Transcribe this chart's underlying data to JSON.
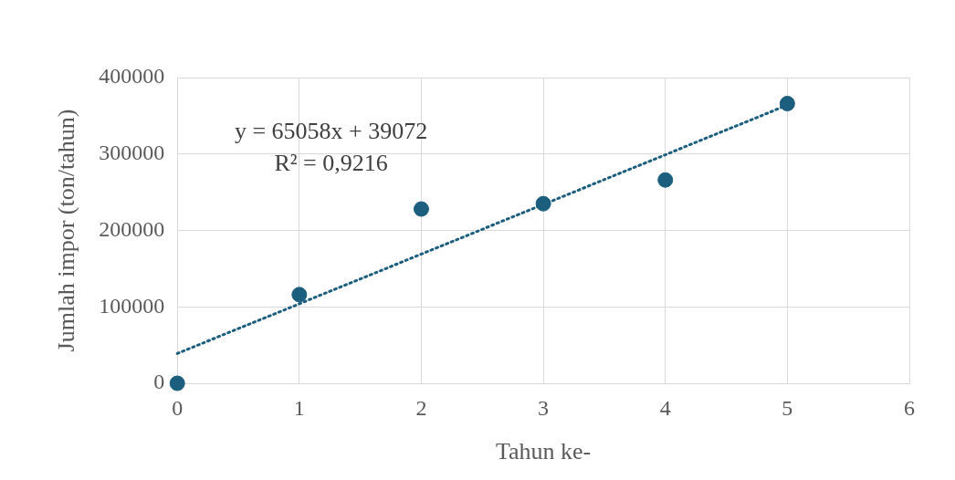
{
  "chart_data": {
    "type": "scatter",
    "xlabel": "Tahun ke-",
    "ylabel": "Jumlah impor (ton/tahun)",
    "xlim": [
      0,
      6
    ],
    "xticks": [
      0,
      1,
      2,
      3,
      4,
      5,
      6
    ],
    "ylim": [
      0,
      400000
    ],
    "yticks": [
      0,
      100000,
      200000,
      300000,
      400000
    ],
    "grid": true,
    "marker": "circle",
    "series": [
      {
        "type": "scatter",
        "color": "#1b5e7e",
        "x": [
          0,
          1,
          2,
          3,
          4,
          5
        ],
        "values": [
          0,
          116000,
          228000,
          235000,
          266000,
          366000
        ]
      },
      {
        "type": "line",
        "color": "#1b5e7e",
        "x": [
          0,
          5
        ],
        "values": [
          39000,
          364000
        ],
        "line_style": "dotted",
        "marker": "none"
      }
    ],
    "annotations": [
      "y = 65058x + 39072",
      "R² = 0,9216"
    ]
  }
}
